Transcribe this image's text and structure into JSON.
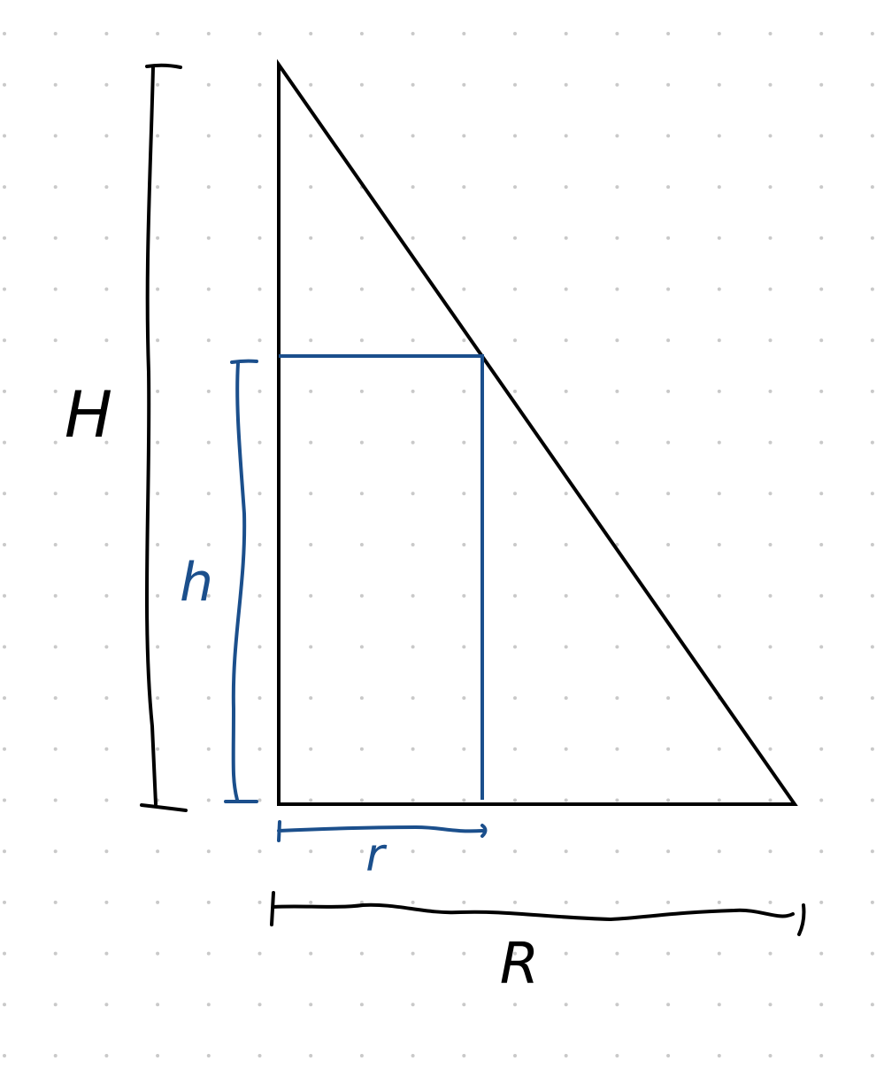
{
  "labels": {
    "big_height": "H",
    "small_height": "h",
    "small_radius": "r",
    "big_radius": "R"
  },
  "colors": {
    "background": "#ffffff",
    "dot_grid": "#c9c9c9",
    "outer_figure": "#000000",
    "inner_figure": "#1b4f8c"
  }
}
